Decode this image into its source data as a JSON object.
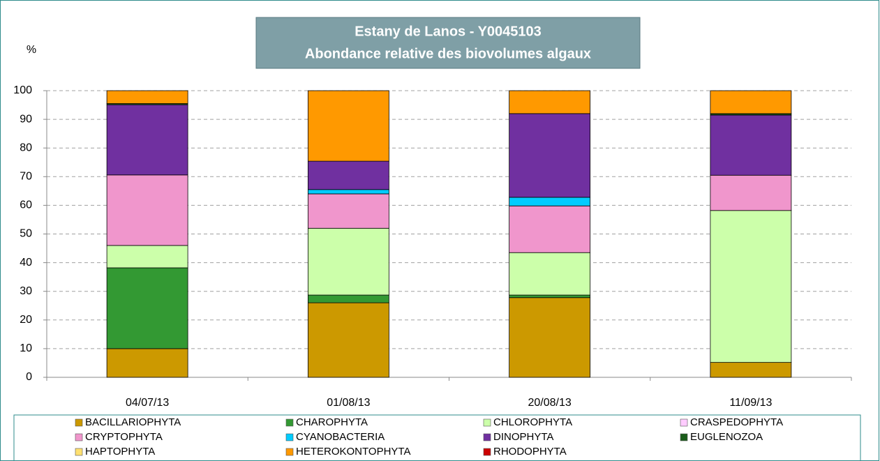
{
  "chart_data": {
    "type": "stacked_bar",
    "title": "Estany de Lanos - Y0045103",
    "subtitle": "Abondance relative des biovolumes algaux",
    "y_label": "%",
    "categories": [
      "04/07/13",
      "01/08/13",
      "20/08/13",
      "11/09/13"
    ],
    "ylim": [
      0,
      100
    ],
    "yticks": [
      0,
      10,
      20,
      30,
      40,
      50,
      60,
      70,
      80,
      90,
      100
    ],
    "grid": true,
    "legend": "bottom",
    "series": [
      {
        "name": "BACILLARIOPHYTA",
        "color": "#cc9900",
        "values": [
          10,
          26,
          27.8,
          5.2
        ]
      },
      {
        "name": "CHAROPHYTA",
        "color": "#339933",
        "values": [
          28.2,
          2.7,
          0.9,
          0
        ]
      },
      {
        "name": "CHLOROPHYTA",
        "color": "#ccffaa",
        "values": [
          7.8,
          23.3,
          14.8,
          53
        ]
      },
      {
        "name": "CRASPEDOPHYTA",
        "color": "#ffccff",
        "values": [
          0,
          0,
          0,
          0
        ]
      },
      {
        "name": "CRYPTOPHYTA",
        "color": "#f096cc",
        "values": [
          24.6,
          12,
          16.3,
          12.3
        ]
      },
      {
        "name": "CYANOBACTERIA",
        "color": "#00ccff",
        "values": [
          0,
          1.5,
          3,
          0
        ]
      },
      {
        "name": "DINOPHYTA",
        "color": "#7030a0",
        "values": [
          24.5,
          9.9,
          29.2,
          21
        ]
      },
      {
        "name": "EUGLENOZOA",
        "color": "#1a5c1a",
        "values": [
          0.4,
          0,
          0,
          0.5
        ]
      },
      {
        "name": "HAPTOPHYTA",
        "color": "#ffe070",
        "values": [
          0,
          0,
          0,
          0
        ]
      },
      {
        "name": "HETEROKONTOPHYTA",
        "color": "#ff9900",
        "values": [
          4.5,
          24.6,
          8,
          8
        ]
      },
      {
        "name": "RHODOPHYTA",
        "color": "#cc0000",
        "values": [
          0,
          0,
          0,
          0
        ]
      }
    ]
  }
}
